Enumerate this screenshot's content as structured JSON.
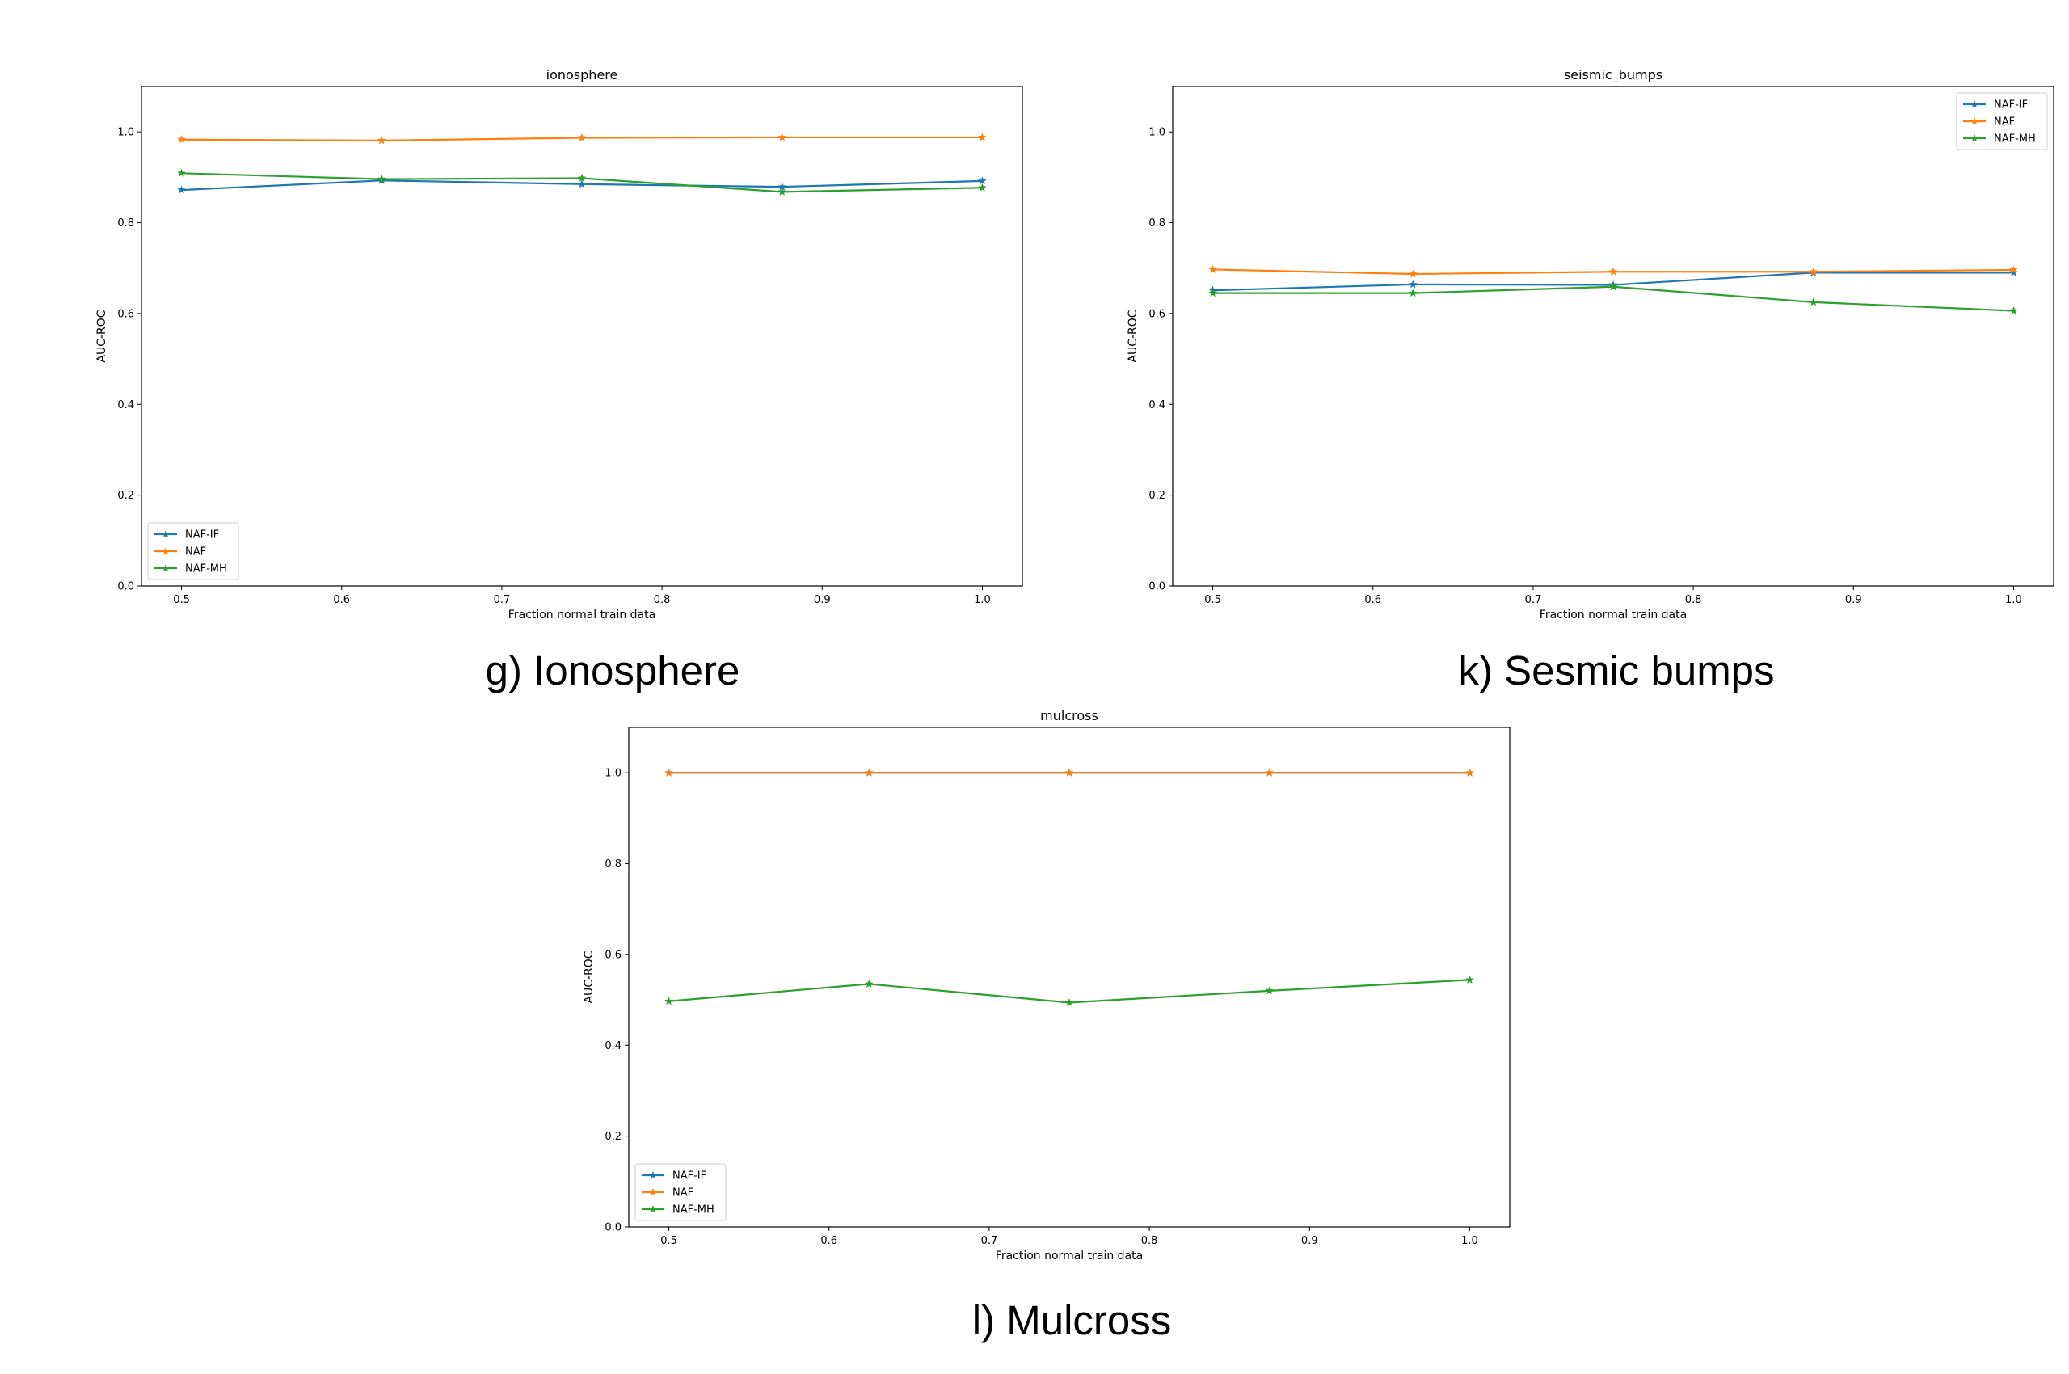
{
  "series_styles": {
    "NAF-IF": {
      "color": "#1f77b4",
      "marker": "star"
    },
    "NAF": {
      "color": "#ff7f0e",
      "marker": "star"
    },
    "NAF-MH": {
      "color": "#2ca02c",
      "marker": "star"
    }
  },
  "chart_data": [
    {
      "type": "line",
      "title": "ionosphere",
      "xlabel": "Fraction normal train data",
      "ylabel": "AUC-ROC",
      "xlim": [
        0.475,
        1.025
      ],
      "ylim": [
        0.0,
        1.1
      ],
      "xticks": [
        0.5,
        0.6,
        0.7,
        0.8,
        0.9,
        1.0
      ],
      "xtick_labels": [
        "0.5",
        "0.6",
        "0.7",
        "0.8",
        "0.9",
        "1.0"
      ],
      "yticks": [
        0.0,
        0.2,
        0.4,
        0.6,
        0.8,
        1.0
      ],
      "ytick_labels": [
        "0.0",
        "0.2",
        "0.4",
        "0.6",
        "0.8",
        "1.0"
      ],
      "grid": false,
      "legend": "lower-left",
      "x": [
        0.5,
        0.625,
        0.75,
        0.875,
        1.0
      ],
      "series": [
        {
          "name": "NAF-IF",
          "values": [
            0.872,
            0.893,
            0.885,
            0.879,
            0.892
          ]
        },
        {
          "name": "NAF",
          "values": [
            0.983,
            0.981,
            0.987,
            0.988,
            0.988
          ]
        },
        {
          "name": "NAF-MH",
          "values": [
            0.909,
            0.896,
            0.898,
            0.868,
            0.877
          ]
        }
      ],
      "caption": "g) Ionosphere"
    },
    {
      "type": "line",
      "title": "seismic_bumps",
      "xlabel": "Fraction normal train data",
      "ylabel": "AUC-ROC",
      "xlim": [
        0.475,
        1.025
      ],
      "ylim": [
        0.0,
        1.1
      ],
      "xticks": [
        0.5,
        0.6,
        0.7,
        0.8,
        0.9,
        1.0
      ],
      "xtick_labels": [
        "0.5",
        "0.6",
        "0.7",
        "0.8",
        "0.9",
        "1.0"
      ],
      "yticks": [
        0.0,
        0.2,
        0.4,
        0.6,
        0.8,
        1.0
      ],
      "ytick_labels": [
        "0.0",
        "0.2",
        "0.4",
        "0.6",
        "0.8",
        "1.0"
      ],
      "grid": false,
      "legend": "upper-right",
      "x": [
        0.5,
        0.625,
        0.75,
        0.875,
        1.0
      ],
      "series": [
        {
          "name": "NAF-IF",
          "values": [
            0.651,
            0.664,
            0.663,
            0.69,
            0.69
          ]
        },
        {
          "name": "NAF",
          "values": [
            0.697,
            0.687,
            0.692,
            0.692,
            0.696
          ]
        },
        {
          "name": "NAF-MH",
          "values": [
            0.645,
            0.645,
            0.659,
            0.625,
            0.606
          ]
        }
      ],
      "caption": "k) Sesmic bumps"
    },
    {
      "type": "line",
      "title": "mulcross",
      "xlabel": "Fraction normal train data",
      "ylabel": "AUC-ROC",
      "xlim": [
        0.475,
        1.025
      ],
      "ylim": [
        0.0,
        1.1
      ],
      "xticks": [
        0.5,
        0.6,
        0.7,
        0.8,
        0.9,
        1.0
      ],
      "xtick_labels": [
        "0.5",
        "0.6",
        "0.7",
        "0.8",
        "0.9",
        "1.0"
      ],
      "yticks": [
        0.0,
        0.2,
        0.4,
        0.6,
        0.8,
        1.0
      ],
      "ytick_labels": [
        "0.0",
        "0.2",
        "0.4",
        "0.6",
        "0.8",
        "1.0"
      ],
      "grid": false,
      "legend": "lower-left",
      "x": [
        0.5,
        0.625,
        0.75,
        0.875,
        1.0
      ],
      "series": [
        {
          "name": "NAF-IF",
          "values": [
            1.0,
            1.0,
            1.0,
            1.0,
            1.0
          ]
        },
        {
          "name": "NAF",
          "values": [
            1.0,
            1.0,
            1.0,
            1.0,
            1.0
          ]
        },
        {
          "name": "NAF-MH",
          "values": [
            0.497,
            0.535,
            0.494,
            0.52,
            0.544
          ]
        }
      ],
      "caption": "l) Mulcross"
    }
  ]
}
